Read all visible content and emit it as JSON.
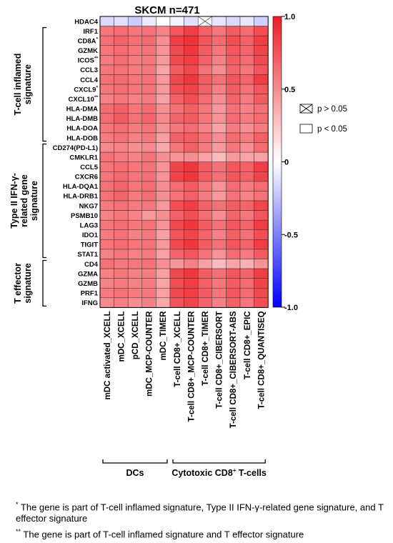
{
  "chart_data": {
    "type": "heatmap",
    "title": "SKCM n=471",
    "rows": [
      {
        "label": "HDAC4",
        "sup": ""
      },
      {
        "label": "IRF1",
        "sup": ""
      },
      {
        "label": "CD8A",
        "sup": "*"
      },
      {
        "label": "GZMK",
        "sup": ""
      },
      {
        "label": "ICOS",
        "sup": "**"
      },
      {
        "label": "CCL3",
        "sup": ""
      },
      {
        "label": "CCL4",
        "sup": ""
      },
      {
        "label": "CXCL9",
        "sup": "*"
      },
      {
        "label": "CXCL10",
        "sup": "**"
      },
      {
        "label": "HLA-DMA",
        "sup": ""
      },
      {
        "label": "HLA-DMB",
        "sup": ""
      },
      {
        "label": "HLA-DOA",
        "sup": ""
      },
      {
        "label": "HLA-DOB",
        "sup": ""
      },
      {
        "label": "CD274(PD-L1)",
        "sup": ""
      },
      {
        "label": "CMKLR1",
        "sup": ""
      },
      {
        "label": "CCL5",
        "sup": ""
      },
      {
        "label": "CXCR6",
        "sup": ""
      },
      {
        "label": "HLA-DQA1",
        "sup": ""
      },
      {
        "label": "HLA-DRB1",
        "sup": ""
      },
      {
        "label": "NKG7",
        "sup": ""
      },
      {
        "label": "PSMB10",
        "sup": ""
      },
      {
        "label": "LAG3",
        "sup": ""
      },
      {
        "label": "IDO1",
        "sup": ""
      },
      {
        "label": "TIGIT",
        "sup": ""
      },
      {
        "label": "STAT1",
        "sup": ""
      },
      {
        "label": "CD4",
        "sup": ""
      },
      {
        "label": "GZMA",
        "sup": ""
      },
      {
        "label": "GZMB",
        "sup": ""
      },
      {
        "label": "PRF1",
        "sup": ""
      },
      {
        "label": "IFNG",
        "sup": ""
      }
    ],
    "columns": [
      "mDC activated_XCELL",
      "mDC_XCELL",
      "pCD_XCELL",
      "mDC_MCP-COUNTER",
      "mDC_TIMER",
      "T-cell CD8+_XCELL",
      "T-cell CD8+_MCP-COUNTER",
      "T-cell CD8+_TIMER",
      "T-cell CD8+_CIBERSORT",
      "T-cell CD8+_CIBERSORT-ABS",
      "T-cell CD8+_EPIC",
      "T-cell CD8+_QUANTISEQ"
    ],
    "values": [
      [
        -0.15,
        -0.12,
        -0.2,
        -0.08,
        0.0,
        -0.05,
        -0.12,
        0.0,
        -0.1,
        -0.15,
        -0.1,
        -0.18
      ],
      [
        0.6,
        0.65,
        0.6,
        0.62,
        0.55,
        0.75,
        0.85,
        0.7,
        0.6,
        0.72,
        0.65,
        0.78
      ],
      [
        0.62,
        0.68,
        0.62,
        0.65,
        0.5,
        0.85,
        0.9,
        0.75,
        0.65,
        0.78,
        0.7,
        0.85
      ],
      [
        0.6,
        0.65,
        0.6,
        0.62,
        0.48,
        0.8,
        0.88,
        0.72,
        0.6,
        0.75,
        0.68,
        0.82
      ],
      [
        0.58,
        0.65,
        0.58,
        0.6,
        0.45,
        0.8,
        0.85,
        0.7,
        0.55,
        0.72,
        0.65,
        0.8
      ],
      [
        0.6,
        0.62,
        0.58,
        0.6,
        0.4,
        0.72,
        0.8,
        0.62,
        0.5,
        0.68,
        0.6,
        0.75
      ],
      [
        0.62,
        0.65,
        0.6,
        0.62,
        0.45,
        0.8,
        0.88,
        0.72,
        0.62,
        0.75,
        0.68,
        0.85
      ],
      [
        0.6,
        0.65,
        0.6,
        0.62,
        0.45,
        0.78,
        0.82,
        0.7,
        0.55,
        0.72,
        0.62,
        0.75
      ],
      [
        0.55,
        0.6,
        0.55,
        0.58,
        0.42,
        0.7,
        0.78,
        0.65,
        0.5,
        0.68,
        0.58,
        0.72
      ],
      [
        0.65,
        0.7,
        0.6,
        0.65,
        0.5,
        0.62,
        0.7,
        0.6,
        0.45,
        0.62,
        0.55,
        0.62
      ],
      [
        0.65,
        0.72,
        0.62,
        0.68,
        0.52,
        0.68,
        0.72,
        0.6,
        0.48,
        0.65,
        0.58,
        0.65
      ],
      [
        0.6,
        0.65,
        0.58,
        0.62,
        0.48,
        0.6,
        0.65,
        0.55,
        0.4,
        0.58,
        0.5,
        0.58
      ],
      [
        0.58,
        0.62,
        0.55,
        0.6,
        0.42,
        0.7,
        0.72,
        0.62,
        0.5,
        0.65,
        0.58,
        0.7
      ],
      [
        0.52,
        0.55,
        0.5,
        0.52,
        0.38,
        0.6,
        0.7,
        0.58,
        0.45,
        0.6,
        0.5,
        0.65
      ],
      [
        0.62,
        0.58,
        0.55,
        0.62,
        0.5,
        0.48,
        0.5,
        0.42,
        0.3,
        0.45,
        0.4,
        0.42
      ],
      [
        0.6,
        0.65,
        0.6,
        0.62,
        0.48,
        0.82,
        0.88,
        0.72,
        0.62,
        0.75,
        0.7,
        0.85
      ],
      [
        0.6,
        0.65,
        0.6,
        0.62,
        0.48,
        0.82,
        0.88,
        0.72,
        0.62,
        0.75,
        0.7,
        0.82
      ],
      [
        0.62,
        0.68,
        0.6,
        0.65,
        0.5,
        0.65,
        0.72,
        0.6,
        0.48,
        0.65,
        0.58,
        0.65
      ],
      [
        0.62,
        0.68,
        0.58,
        0.65,
        0.5,
        0.62,
        0.7,
        0.58,
        0.45,
        0.62,
        0.55,
        0.62
      ],
      [
        0.58,
        0.62,
        0.58,
        0.6,
        0.45,
        0.78,
        0.85,
        0.7,
        0.62,
        0.72,
        0.68,
        0.82
      ],
      [
        0.55,
        0.6,
        0.55,
        0.45,
        0.5,
        0.7,
        0.78,
        0.65,
        0.5,
        0.68,
        0.6,
        0.75
      ],
      [
        0.6,
        0.65,
        0.6,
        0.62,
        0.48,
        0.8,
        0.88,
        0.72,
        0.62,
        0.75,
        0.68,
        0.85
      ],
      [
        0.58,
        0.62,
        0.55,
        0.6,
        0.42,
        0.75,
        0.82,
        0.68,
        0.55,
        0.7,
        0.62,
        0.78
      ],
      [
        0.6,
        0.65,
        0.6,
        0.62,
        0.45,
        0.8,
        0.88,
        0.72,
        0.62,
        0.75,
        0.68,
        0.85
      ],
      [
        0.55,
        0.6,
        0.55,
        0.58,
        0.42,
        0.68,
        0.75,
        0.62,
        0.48,
        0.65,
        0.58,
        0.72
      ],
      [
        0.62,
        0.58,
        0.6,
        0.62,
        0.5,
        0.45,
        0.55,
        0.42,
        0.3,
        0.4,
        0.35,
        0.48
      ],
      [
        0.55,
        0.6,
        0.55,
        0.58,
        0.42,
        0.8,
        0.88,
        0.72,
        0.62,
        0.75,
        0.68,
        0.85
      ],
      [
        0.55,
        0.58,
        0.55,
        0.58,
        0.4,
        0.78,
        0.85,
        0.7,
        0.6,
        0.72,
        0.65,
        0.82
      ],
      [
        0.58,
        0.62,
        0.58,
        0.6,
        0.42,
        0.8,
        0.85,
        0.72,
        0.6,
        0.75,
        0.65,
        0.8
      ],
      [
        0.52,
        0.55,
        0.5,
        0.55,
        0.38,
        0.75,
        0.82,
        0.68,
        0.55,
        0.7,
        0.6,
        0.78
      ]
    ],
    "not_significant": [
      [
        0,
        7
      ]
    ],
    "colorbar": {
      "min": -1.0,
      "max": 1.0,
      "ticks": [
        "1.0",
        "0.5",
        "0",
        "-0.5",
        "-1.0"
      ],
      "colors": [
        "#0000ff",
        "#ffffff",
        "#ee1c24"
      ]
    },
    "legend": [
      {
        "symbol": "crossed-box",
        "label": "p > 0.05"
      },
      {
        "symbol": "empty-box",
        "label": "p < 0.05"
      }
    ],
    "row_groups": [
      {
        "label_lines": [
          "T-cell inflamed",
          "signature"
        ],
        "from": 1,
        "to": 12
      },
      {
        "label_lines": [
          "Type II IFN-γ-",
          "related gene",
          "signature"
        ],
        "from": 13,
        "to": 24
      },
      {
        "label_lines": [
          "T effector",
          "signature"
        ],
        "from": 25,
        "to": 29
      }
    ],
    "column_groups": [
      {
        "label": "DCs",
        "sup": "",
        "suffix": "",
        "from": 0,
        "to": 4
      },
      {
        "label": "Cytotoxic CD8",
        "sup": "+",
        "suffix": " T-cells",
        "from": 5,
        "to": 11
      }
    ]
  },
  "footnotes": [
    {
      "mark": "*",
      "text": "The gene is part of T-cell inflamed signature, Type II IFN-γ-related gene signature, and T effector signature"
    },
    {
      "mark": "**",
      "text": "The gene is part of T-cell inflamed signature and T effector signature"
    }
  ]
}
